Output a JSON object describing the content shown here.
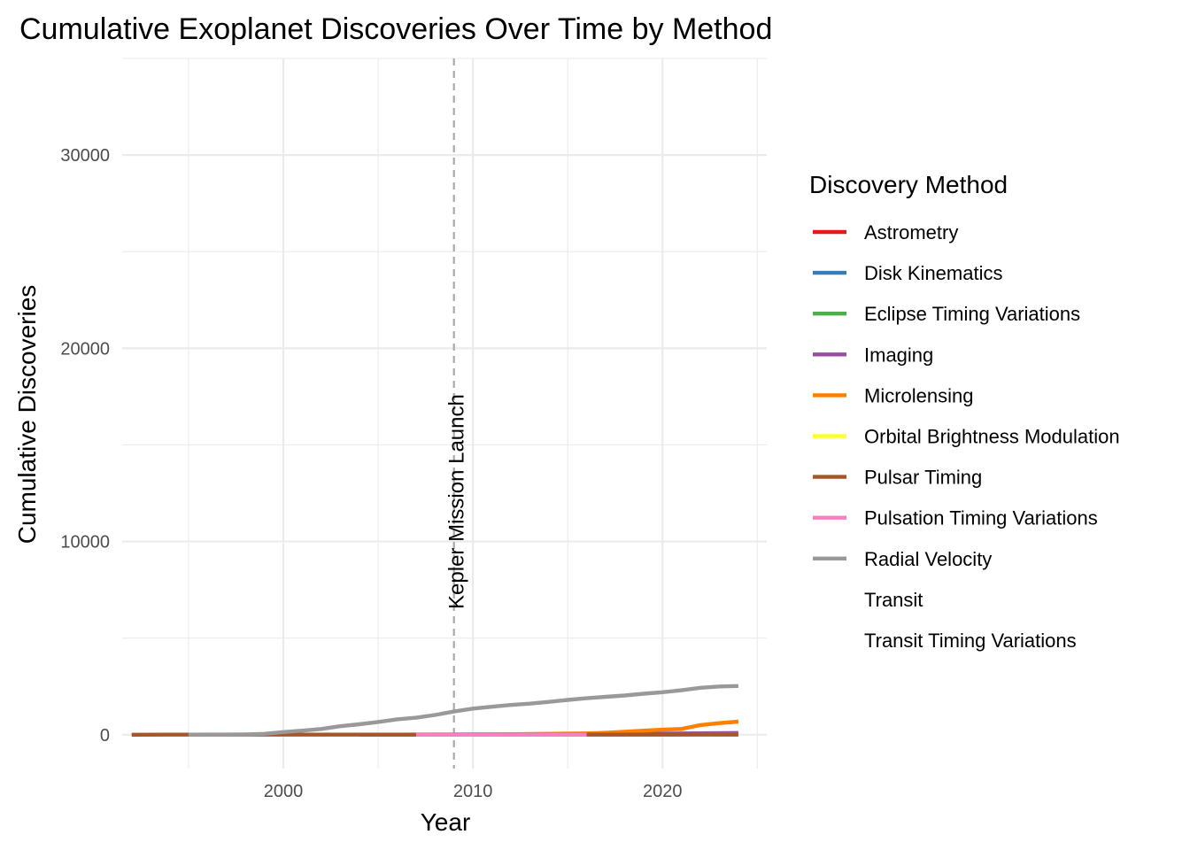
{
  "chart_data": {
    "type": "line",
    "title": "Cumulative Exoplanet Discoveries Over Time by Method",
    "xlabel": "Year",
    "ylabel": "Cumulative Discoveries",
    "xlim": [
      1991.5,
      2025.5
    ],
    "ylim": [
      -1750,
      35000
    ],
    "x_ticks": [
      2000,
      2010,
      2020
    ],
    "y_ticks": [
      0,
      10000,
      20000,
      30000
    ],
    "grid": true,
    "legend": {
      "title": "Discovery Method",
      "placement": "right"
    },
    "annotation": {
      "text": "Kepler Mission Launch",
      "x": 2009
    },
    "series": [
      {
        "name": "Astrometry",
        "color": "#E41A1C",
        "points": [
          [
            2013,
            1
          ],
          [
            2024,
            3
          ]
        ]
      },
      {
        "name": "Disk Kinematics",
        "color": "#377EB8",
        "points": [
          [
            2019,
            1
          ],
          [
            2024,
            1
          ]
        ]
      },
      {
        "name": "Eclipse Timing Variations",
        "color": "#4DAF4A",
        "points": [
          [
            2010,
            2
          ],
          [
            2015,
            8
          ],
          [
            2020,
            14
          ],
          [
            2024,
            17
          ]
        ]
      },
      {
        "name": "Imaging",
        "color": "#984EA3",
        "points": [
          [
            2004,
            1
          ],
          [
            2008,
            10
          ],
          [
            2012,
            25
          ],
          [
            2016,
            45
          ],
          [
            2020,
            60
          ],
          [
            2022,
            75
          ],
          [
            2024,
            90
          ]
        ]
      },
      {
        "name": "Microlensing",
        "color": "#FF7F00",
        "points": [
          [
            2004,
            1
          ],
          [
            2006,
            4
          ],
          [
            2008,
            8
          ],
          [
            2010,
            13
          ],
          [
            2012,
            27
          ],
          [
            2014,
            45
          ],
          [
            2016,
            70
          ],
          [
            2017,
            100
          ],
          [
            2018,
            150
          ],
          [
            2019,
            210
          ],
          [
            2020,
            260
          ],
          [
            2021,
            300
          ],
          [
            2022,
            500
          ],
          [
            2023,
            600
          ],
          [
            2024,
            680
          ]
        ]
      },
      {
        "name": "Orbital Brightness Modulation",
        "color": "#FFFF33",
        "points": [
          [
            2011,
            1
          ],
          [
            2013,
            4
          ],
          [
            2016,
            6
          ],
          [
            2024,
            9
          ]
        ]
      },
      {
        "name": "Pulsar Timing",
        "color": "#A65628",
        "points": [
          [
            1992,
            2
          ],
          [
            1994,
            3
          ],
          [
            2000,
            4
          ],
          [
            2005,
            5
          ],
          [
            2011,
            6
          ],
          [
            2017,
            7
          ],
          [
            2022,
            8
          ],
          [
            2024,
            8
          ]
        ]
      },
      {
        "name": "Pulsation Timing Variations",
        "color": "#F781BF",
        "points": [
          [
            2007,
            1
          ],
          [
            2013,
            1
          ],
          [
            2016,
            2
          ]
        ]
      },
      {
        "name": "Radial Velocity",
        "color": "#999999",
        "points": [
          [
            1995,
            3
          ],
          [
            1996,
            9
          ],
          [
            1997,
            10
          ],
          [
            1998,
            20
          ],
          [
            1999,
            45
          ],
          [
            2000,
            140
          ],
          [
            2001,
            210
          ],
          [
            2002,
            300
          ],
          [
            2003,
            440
          ],
          [
            2004,
            540
          ],
          [
            2005,
            660
          ],
          [
            2006,
            800
          ],
          [
            2007,
            880
          ],
          [
            2008,
            1020
          ],
          [
            2009,
            1200
          ],
          [
            2010,
            1350
          ],
          [
            2011,
            1450
          ],
          [
            2012,
            1540
          ],
          [
            2013,
            1610
          ],
          [
            2014,
            1700
          ],
          [
            2015,
            1800
          ],
          [
            2016,
            1890
          ],
          [
            2017,
            1960
          ],
          [
            2018,
            2030
          ],
          [
            2019,
            2120
          ],
          [
            2020,
            2200
          ],
          [
            2021,
            2300
          ],
          [
            2022,
            2430
          ],
          [
            2023,
            2500
          ],
          [
            2024,
            2520
          ]
        ]
      },
      {
        "name": "Transit",
        "color": "#FFFFFF",
        "points": []
      },
      {
        "name": "Transit Timing Variations",
        "color": "#FFFFFF",
        "points": []
      }
    ]
  }
}
